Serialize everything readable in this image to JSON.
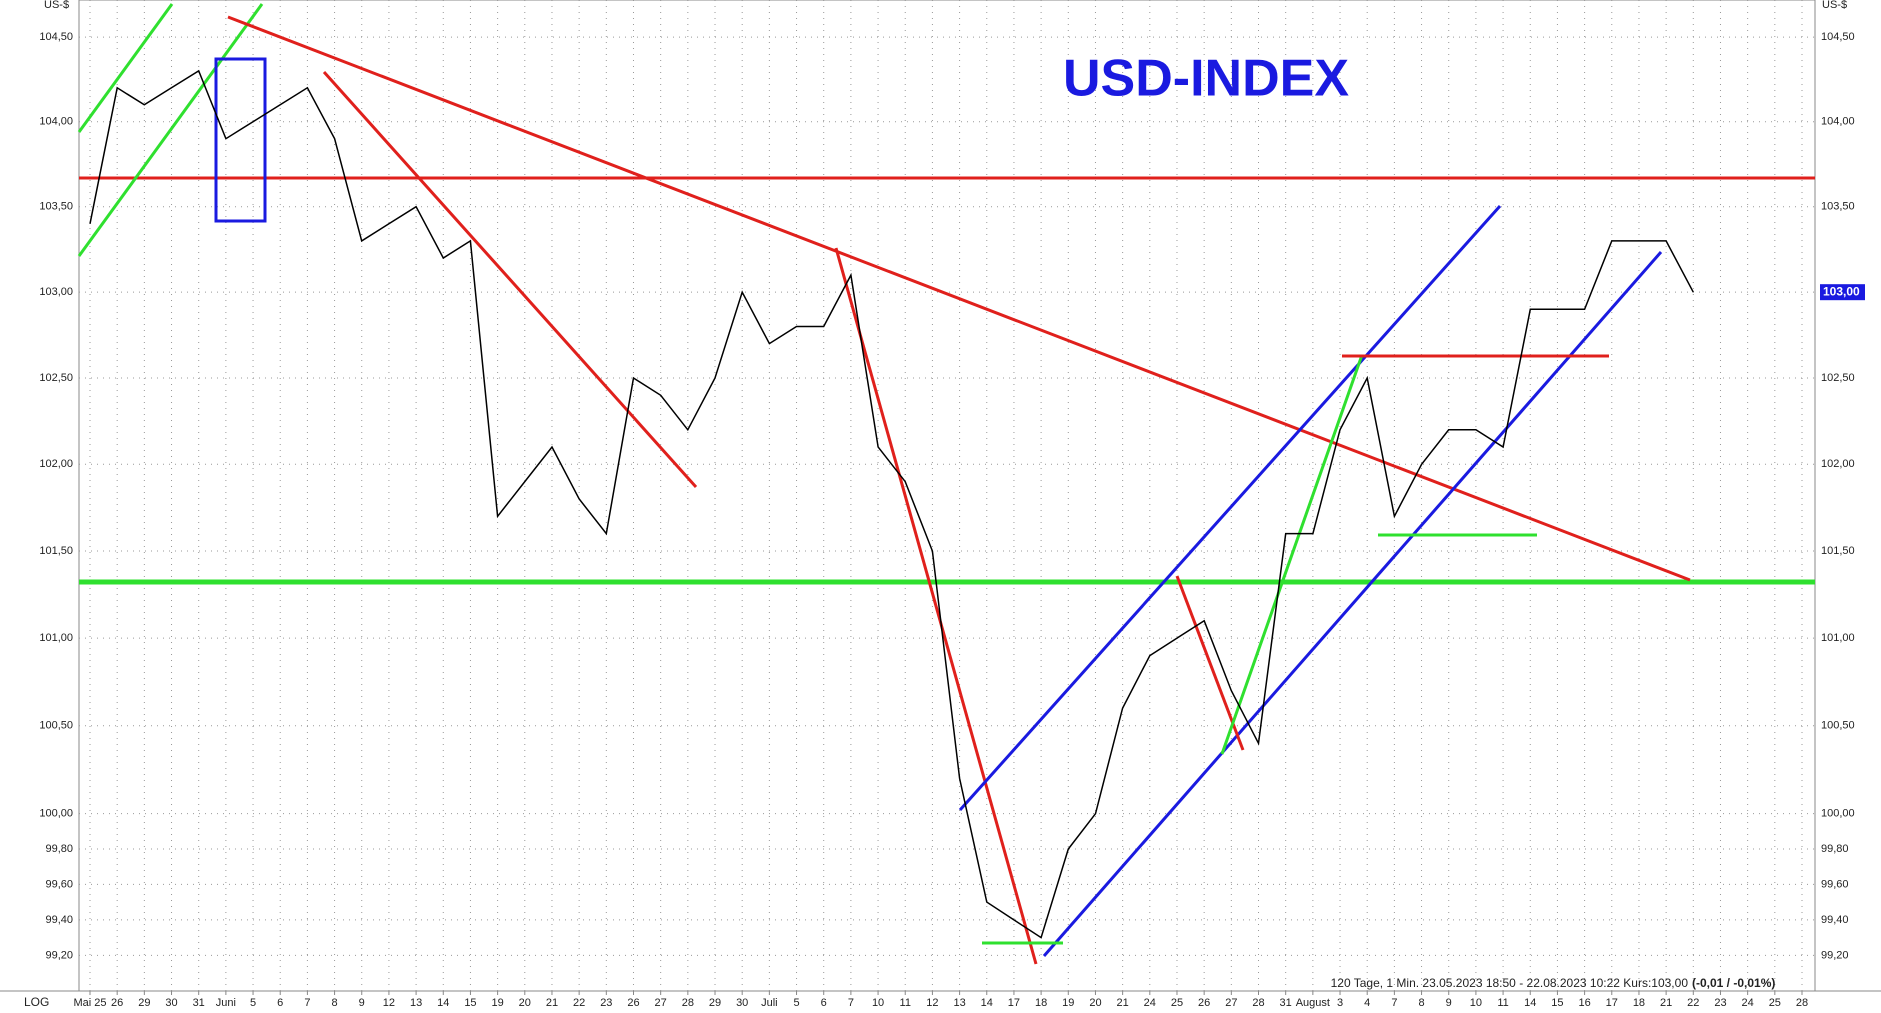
{
  "chart_data": {
    "type": "line",
    "title": "USD-INDEX",
    "y_label": "US-$",
    "scale_label": "LOG",
    "info": "120 Tage, 1 Min. 23.05.2023 18:50 - 22.08.2023 10:22  Kurs:103,00",
    "change": "(-0,01 / -0,01%)",
    "log_scale": true,
    "grid": true,
    "color": "#000000",
    "last_price": {
      "value": 103.0,
      "label": "103,00"
    },
    "ylim": [
      99.0,
      104.72
    ],
    "yticks": [
      {
        "value": 99.2,
        "label": "99,20"
      },
      {
        "value": 99.4,
        "label": "99,40"
      },
      {
        "value": 99.6,
        "label": "99,60"
      },
      {
        "value": 99.8,
        "label": "99,80"
      },
      {
        "value": 100,
        "label": "100,00"
      },
      {
        "value": 100.5,
        "label": "100,50"
      },
      {
        "value": 101,
        "label": "101,00"
      },
      {
        "value": 101.5,
        "label": "101,50"
      },
      {
        "value": 102,
        "label": "102,00"
      },
      {
        "value": 102.5,
        "label": "102,50"
      },
      {
        "value": 103,
        "label": "103,00"
      },
      {
        "value": 103.5,
        "label": "103,50"
      },
      {
        "value": 104,
        "label": "104,00"
      },
      {
        "value": 104.5,
        "label": "104,50"
      }
    ],
    "categories": [
      "Mai 25",
      "26",
      "29",
      "30",
      "31",
      "Juni",
      "5",
      "6",
      "7",
      "8",
      "9",
      "12",
      "13",
      "14",
      "15",
      "19",
      "20",
      "21",
      "22",
      "23",
      "26",
      "27",
      "28",
      "29",
      "30",
      "Juli",
      "5",
      "6",
      "7",
      "10",
      "11",
      "12",
      "13",
      "14",
      "17",
      "18",
      "19",
      "20",
      "21",
      "24",
      "25",
      "26",
      "27",
      "28",
      "31",
      "August",
      "3",
      "4",
      "7",
      "8",
      "9",
      "10",
      "11",
      "14",
      "15",
      "16",
      "17",
      "18",
      "21",
      "22",
      "23",
      "24",
      "25",
      "28"
    ],
    "values": [
      103.4,
      104.2,
      104.1,
      104.2,
      104.3,
      103.9,
      104.0,
      104.1,
      104.2,
      103.9,
      103.3,
      103.4,
      103.5,
      103.2,
      103.3,
      101.7,
      101.9,
      102.1,
      101.8,
      101.6,
      102.5,
      102.4,
      102.2,
      102.5,
      103.0,
      102.7,
      102.8,
      102.8,
      103.1,
      102.1,
      101.9,
      101.5,
      100.2,
      99.5,
      99.4,
      99.3,
      99.8,
      100.0,
      100.6,
      100.9,
      101.0,
      101.1,
      100.7,
      100.4,
      101.6,
      101.6,
      102.2,
      102.5,
      101.7,
      102.0,
      102.2,
      102.2,
      102.1,
      102.9,
      102.9,
      102.9,
      103.3,
      103.3,
      103.3,
      103.0,
      null,
      null,
      null,
      null
    ]
  }
}
